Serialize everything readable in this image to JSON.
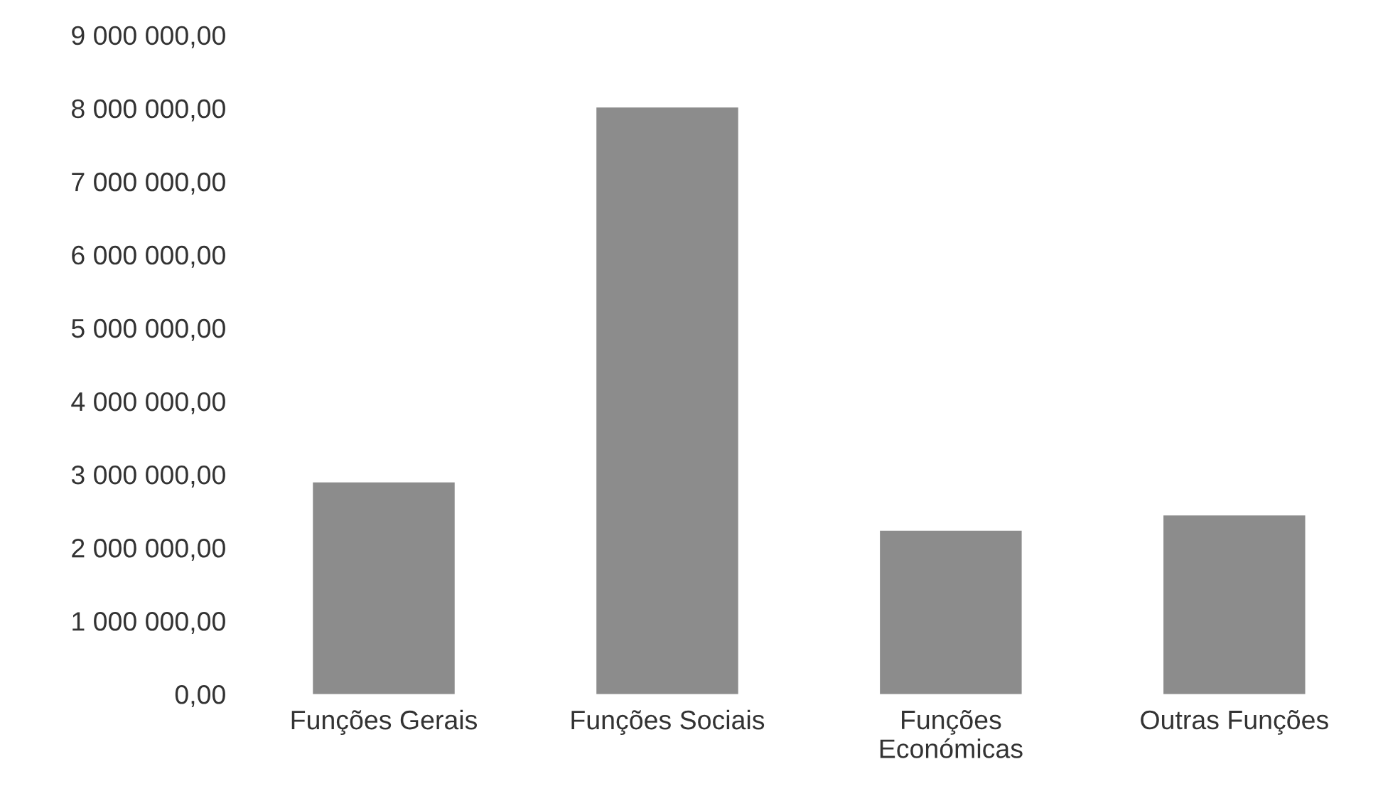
{
  "chart_data": {
    "type": "bar",
    "categories": [
      "Funções Gerais",
      "Funções Sociais",
      "Funções\nEconómicas",
      "Outras Funções"
    ],
    "values": [
      2890000,
      8010000,
      2230000,
      2440000
    ],
    "color": "#8c8c8c",
    "ylim": [
      0,
      9000000
    ],
    "yticks": [
      {
        "value": 0,
        "label": "0,00"
      },
      {
        "value": 1000000,
        "label": "1 000 000,00"
      },
      {
        "value": 2000000,
        "label": "2 000 000,00"
      },
      {
        "value": 3000000,
        "label": "3 000 000,00"
      },
      {
        "value": 4000000,
        "label": "4 000 000,00"
      },
      {
        "value": 5000000,
        "label": "5 000 000,00"
      },
      {
        "value": 6000000,
        "label": "6 000 000,00"
      },
      {
        "value": 7000000,
        "label": "7 000 000,00"
      },
      {
        "value": 8000000,
        "label": "8 000 000,00"
      },
      {
        "value": 9000000,
        "label": "9 000 000,00"
      }
    ],
    "grid": false,
    "legend": false
  }
}
